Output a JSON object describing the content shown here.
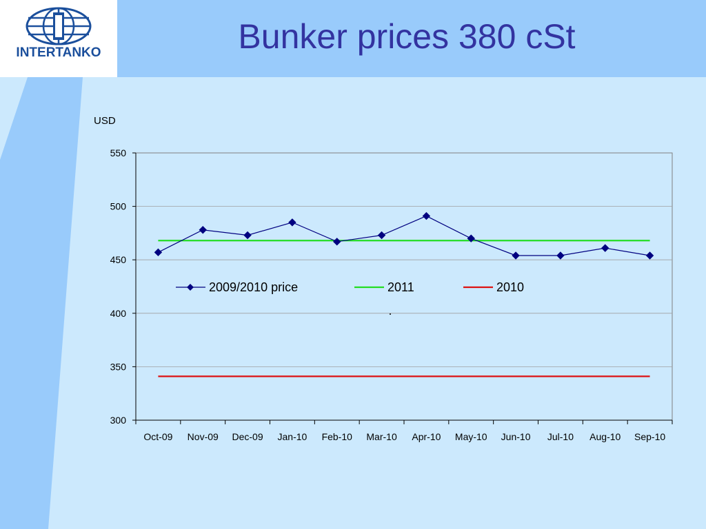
{
  "slide": {
    "title": "Bunker prices 380 cSt",
    "logo_text": "INTERTANKO"
  },
  "colors": {
    "header": "#99cbfb",
    "background": "#cce9fd",
    "title": "#3333a0",
    "series_2009_2010": "#000080",
    "line_2011": "#22dd22",
    "line_2010": "#dd1111"
  },
  "chart_data": {
    "type": "line",
    "unit_label": "USD",
    "categories": [
      "Oct-09",
      "Nov-09",
      "Dec-09",
      "Jan-10",
      "Feb-10",
      "Mar-10",
      "Apr-10",
      "May-10",
      "Jun-10",
      "Jul-10",
      "Aug-10",
      "Sep-10"
    ],
    "ylim": [
      300,
      550
    ],
    "yticks": [
      300,
      350,
      400,
      450,
      500,
      550
    ],
    "grid": true,
    "legend_position": "inside-center",
    "series": [
      {
        "name": "2009/2010 price",
        "values": [
          457,
          478,
          473,
          485,
          467,
          473,
          491,
          470,
          454,
          454,
          461,
          454
        ],
        "marker": "diamond"
      },
      {
        "name": "2011",
        "values": [
          468,
          468,
          468,
          468,
          468,
          468,
          468,
          468,
          468,
          468,
          468,
          468
        ],
        "marker": "none"
      },
      {
        "name": "2010",
        "values": [
          341,
          341,
          341,
          341,
          341,
          341,
          341,
          341,
          341,
          341,
          341,
          341
        ],
        "marker": "none"
      }
    ]
  }
}
